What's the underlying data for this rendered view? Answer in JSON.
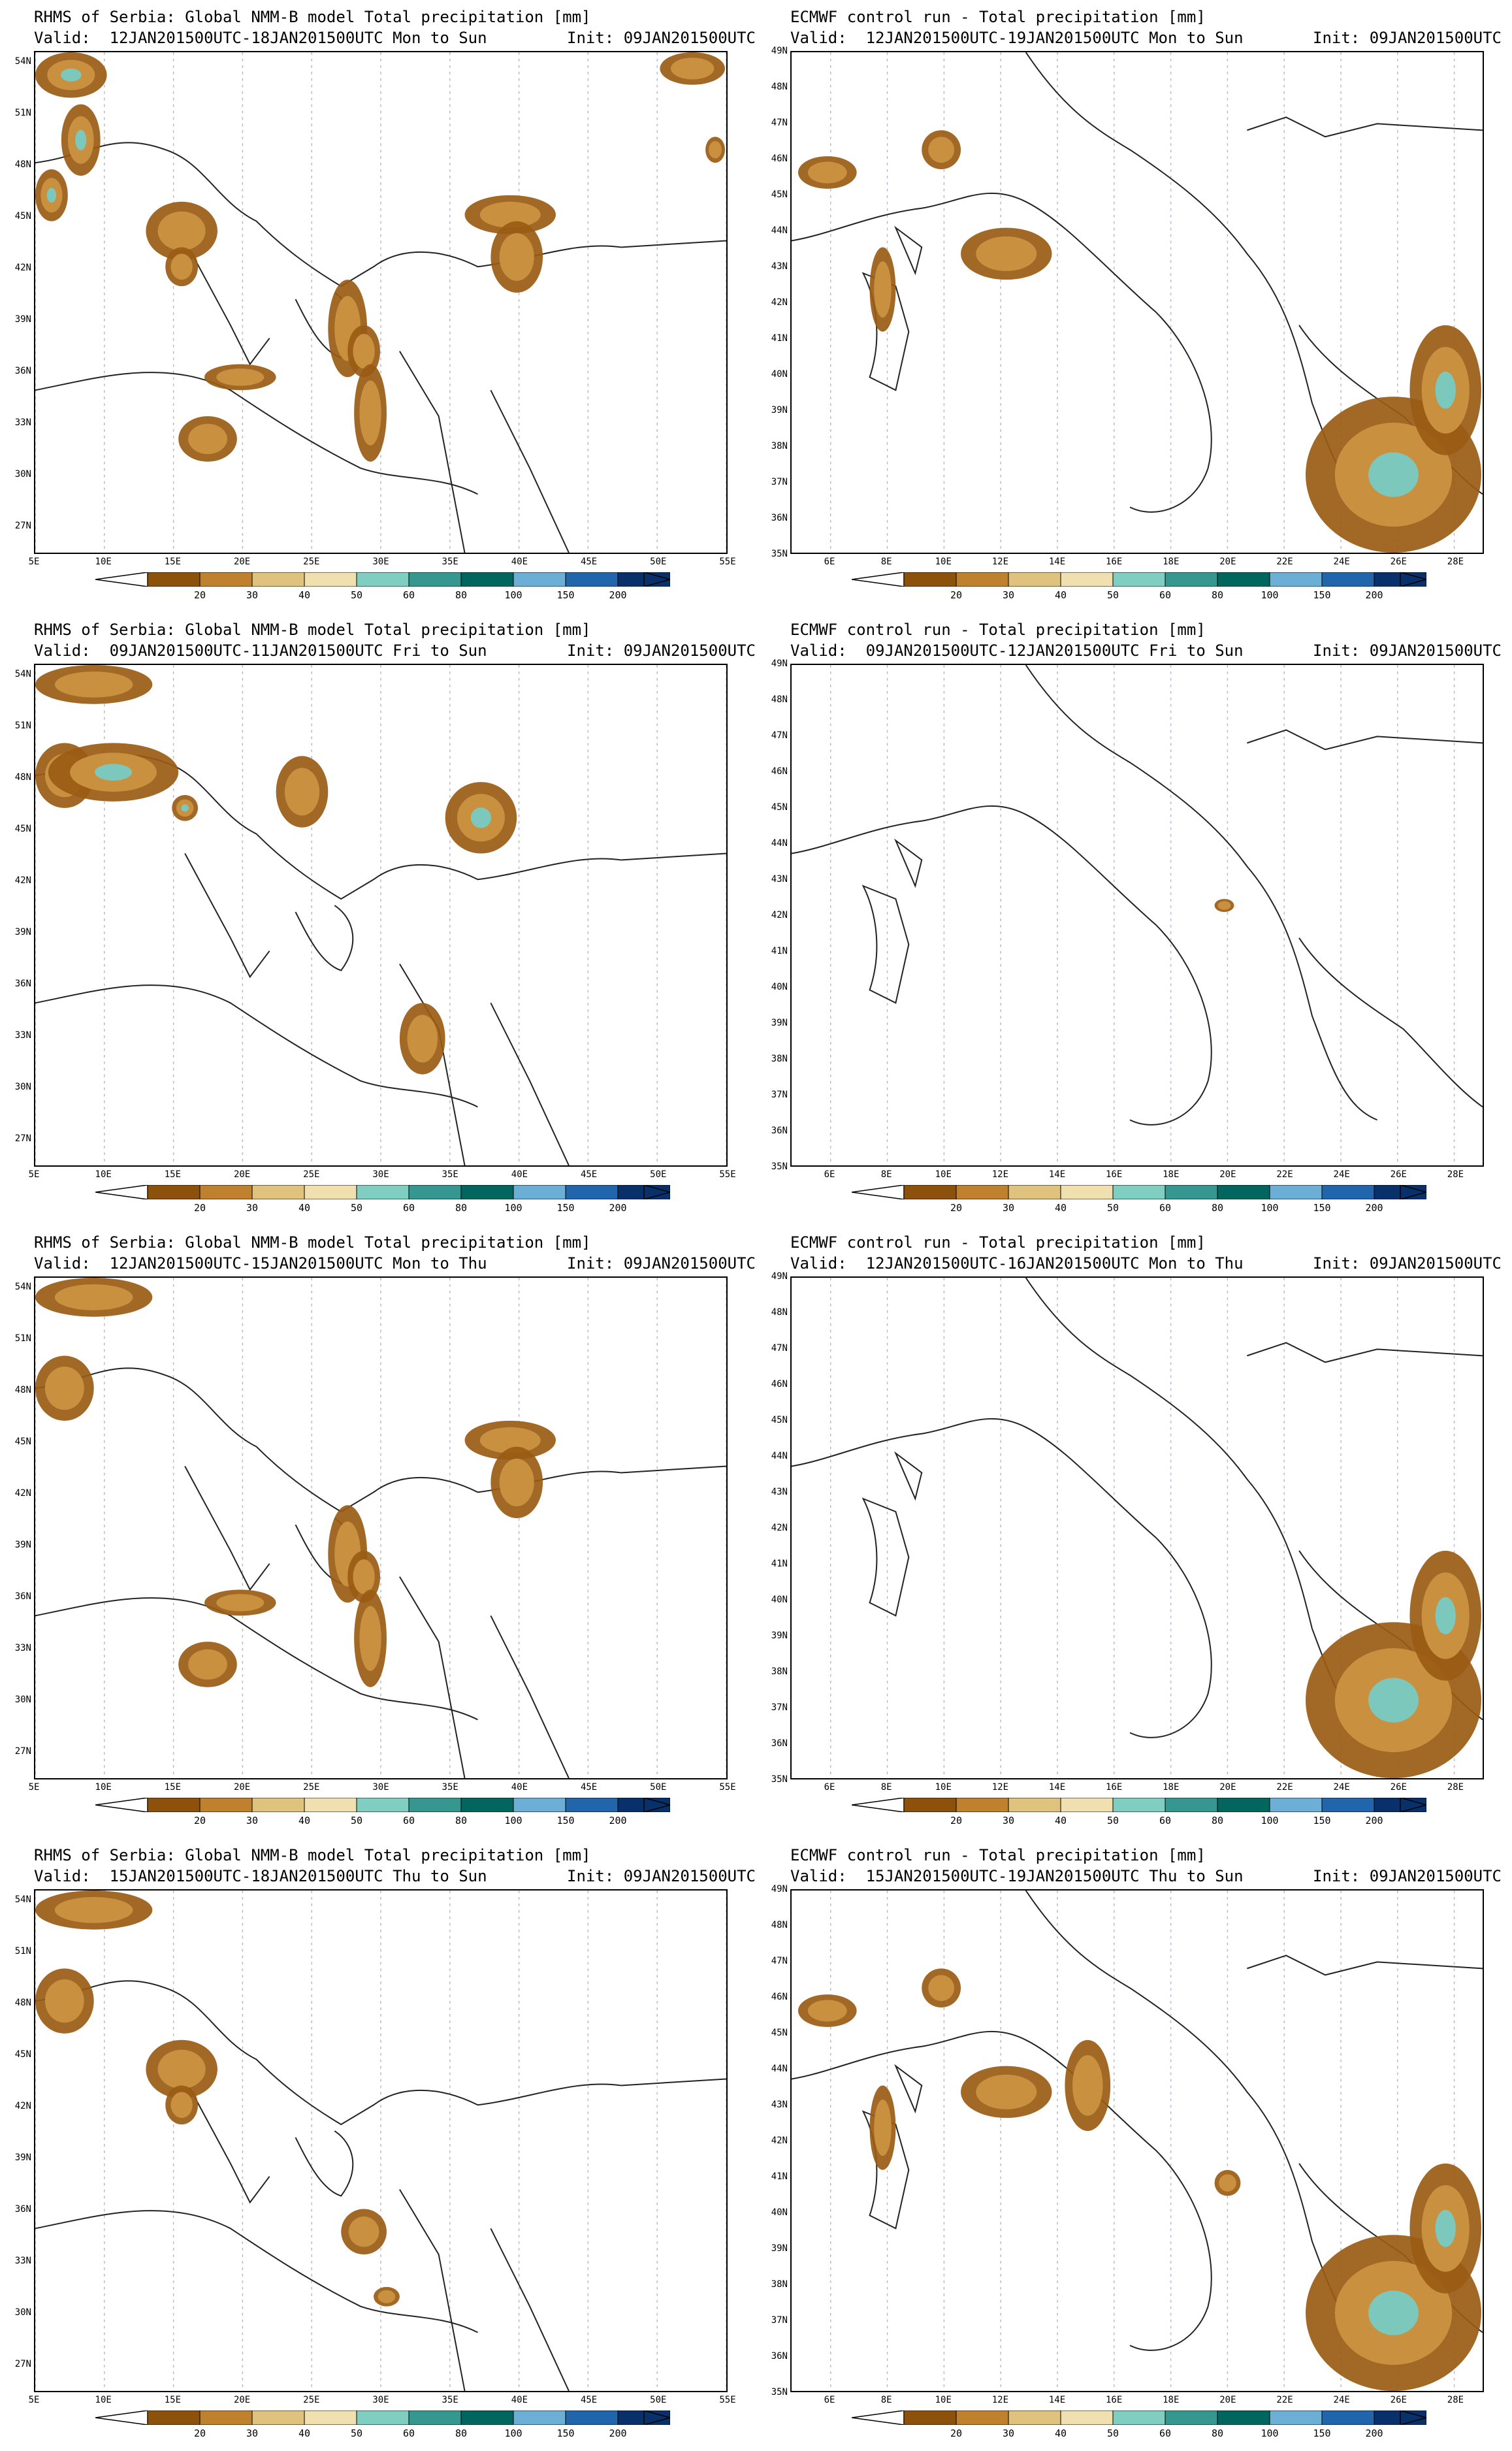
{
  "panels": [
    {
      "model": "nmmb",
      "title_line1": "RHMS of Serbia: Global NMM-B model Total precipitation [mm]",
      "title_line2": "Valid:  12JAN201500UTC-18JAN201500UTC Mon to Sun",
      "init": "Init: 09JAN201500UTC",
      "lat_labels": [
        "54N",
        "51N",
        "48N",
        "45N",
        "42N",
        "39N",
        "36N",
        "33N",
        "30N",
        "27N"
      ],
      "lon_labels": [
        "5E",
        "10E",
        "15E",
        "20E",
        "25E",
        "30E",
        "35E",
        "40E",
        "45E",
        "50E",
        "55E"
      ],
      "precip_regions": [
        "western-europe",
        "adriatic",
        "aegean-east",
        "turkey-east",
        "eastern-med",
        "northeast"
      ]
    },
    {
      "model": "ecmwf",
      "title_line1": "ECMWF control run - Total precipitation [mm]",
      "title_line2": "Valid:  12JAN201500UTC-19JAN201500UTC Mon to Sun",
      "init": "Init: 09JAN201500UTC",
      "lat_labels": [
        "49N",
        "48N",
        "47N",
        "46N",
        "45N",
        "44N",
        "43N",
        "42N",
        "41N",
        "40N",
        "39N",
        "38N",
        "37N",
        "36N",
        "35N"
      ],
      "lon_labels": [
        "6E",
        "8E",
        "10E",
        "12E",
        "14E",
        "16E",
        "18E",
        "20E",
        "22E",
        "24E",
        "26E",
        "28E"
      ],
      "precip_regions": [
        "corsica-sardinia",
        "tyrrhenian",
        "greece-southeast-heavy"
      ]
    },
    {
      "model": "nmmb",
      "title_line1": "RHMS of Serbia: Global NMM-B model Total precipitation [mm]",
      "title_line2": "Valid:  09JAN201500UTC-11JAN201500UTC Fri to Sun",
      "init": "Init: 09JAN201500UTC",
      "lat_labels": [
        "54N",
        "51N",
        "48N",
        "45N",
        "42N",
        "39N",
        "36N",
        "33N",
        "30N",
        "27N"
      ],
      "lon_labels": [
        "5E",
        "10E",
        "15E",
        "20E",
        "25E",
        "30E",
        "35E",
        "40E",
        "45E",
        "50E",
        "55E"
      ],
      "precip_regions": [
        "northwest",
        "alps",
        "carpathian",
        "caucasus",
        "levant"
      ]
    },
    {
      "model": "ecmwf",
      "title_line1": "ECMWF control run - Total precipitation [mm]",
      "title_line2": "Valid:  09JAN201500UTC-12JAN201500UTC Fri to Sun",
      "init": "Init: 09JAN201500UTC",
      "lat_labels": [
        "49N",
        "48N",
        "47N",
        "46N",
        "45N",
        "44N",
        "43N",
        "42N",
        "41N",
        "40N",
        "39N",
        "38N",
        "37N",
        "36N",
        "35N"
      ],
      "lon_labels": [
        "6E",
        "8E",
        "10E",
        "12E",
        "14E",
        "16E",
        "18E",
        "20E",
        "22E",
        "24E",
        "26E",
        "28E"
      ],
      "precip_regions": [
        "montenegro-small"
      ]
    },
    {
      "model": "nmmb",
      "title_line1": "RHMS of Serbia: Global NMM-B model Total precipitation [mm]",
      "title_line2": "Valid:  12JAN201500UTC-15JAN201500UTC Mon to Thu",
      "init": "Init: 09JAN201500UTC",
      "lat_labels": [
        "54N",
        "51N",
        "48N",
        "45N",
        "42N",
        "39N",
        "36N",
        "33N",
        "30N",
        "27N"
      ],
      "lon_labels": [
        "5E",
        "10E",
        "15E",
        "20E",
        "25E",
        "30E",
        "35E",
        "40E",
        "45E",
        "50E",
        "55E"
      ],
      "precip_regions": [
        "northwest",
        "aegean-east",
        "turkey-east",
        "eastern-med"
      ]
    },
    {
      "model": "ecmwf",
      "title_line1": "ECMWF control run - Total precipitation [mm]",
      "title_line2": "Valid:  12JAN201500UTC-16JAN201500UTC Mon to Thu",
      "init": "Init: 09JAN201500UTC",
      "lat_labels": [
        "49N",
        "48N",
        "47N",
        "46N",
        "45N",
        "44N",
        "43N",
        "42N",
        "41N",
        "40N",
        "39N",
        "38N",
        "37N",
        "36N",
        "35N"
      ],
      "lon_labels": [
        "6E",
        "8E",
        "10E",
        "12E",
        "14E",
        "16E",
        "18E",
        "20E",
        "22E",
        "24E",
        "26E",
        "28E"
      ],
      "precip_regions": [
        "greece-southeast-heavy"
      ]
    },
    {
      "model": "nmmb",
      "title_line1": "RHMS of Serbia: Global NMM-B model Total precipitation [mm]",
      "title_line2": "Valid:  15JAN201500UTC-18JAN201500UTC Thu to Sun",
      "init": "Init: 09JAN201500UTC",
      "lat_labels": [
        "54N",
        "51N",
        "48N",
        "45N",
        "42N",
        "39N",
        "36N",
        "33N",
        "30N",
        "27N"
      ],
      "lon_labels": [
        "5E",
        "10E",
        "15E",
        "20E",
        "25E",
        "30E",
        "35E",
        "40E",
        "45E",
        "50E",
        "55E"
      ],
      "precip_regions": [
        "northwest",
        "adriatic",
        "rhodes"
      ]
    },
    {
      "model": "ecmwf",
      "title_line1": "ECMWF control run - Total precipitation [mm]",
      "title_line2": "Valid:  15JAN201500UTC-19JAN201500UTC Thu to Sun",
      "init": "Init: 09JAN201500UTC",
      "lat_labels": [
        "49N",
        "48N",
        "47N",
        "46N",
        "45N",
        "44N",
        "43N",
        "42N",
        "41N",
        "40N",
        "39N",
        "38N",
        "37N",
        "36N",
        "35N"
      ],
      "lon_labels": [
        "6E",
        "8E",
        "10E",
        "12E",
        "14E",
        "16E",
        "18E",
        "20E",
        "22E",
        "24E",
        "26E",
        "28E"
      ],
      "precip_regions": [
        "corsica-sardinia",
        "tyrrhenian",
        "croatia-coast",
        "greece-southeast-heavy"
      ]
    }
  ],
  "colorbar": {
    "labels": [
      "20",
      "30",
      "40",
      "50",
      "60",
      "80",
      "100",
      "150",
      "200"
    ],
    "colors": [
      "#8c510a",
      "#bf812d",
      "#dfc27d",
      "#f0e0b0",
      "#80cdc1",
      "#35978f",
      "#01665e",
      "#6baed6",
      "#2166ac",
      "#08306b"
    ]
  }
}
